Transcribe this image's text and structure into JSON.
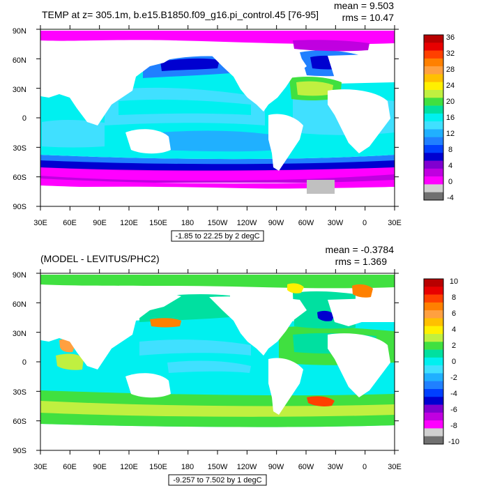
{
  "panels": [
    {
      "title": "TEMP at z= 305.1m, b.e15.B1850.f09_g16.pi_control.45 [76-95]",
      "mean": "mean = 9.503",
      "rms": "rms = 10.47",
      "range": "-1.85 to 22.25 by 2 degC",
      "lat_labels": [
        "90N",
        "60N",
        "30N",
        "0",
        "30S",
        "60S",
        "90S"
      ],
      "lon_labels": [
        "30E",
        "60E",
        "90E",
        "120E",
        "150E",
        "180",
        "150W",
        "120W",
        "90W",
        "60W",
        "30W",
        "0",
        "30E"
      ],
      "colorbar_labels": [
        "36",
        "32",
        "28",
        "24",
        "20",
        "16",
        "12",
        "8",
        "4",
        "0",
        "-4"
      ],
      "colorbar_colors": [
        "#b80000",
        "#e80000",
        "#ff4000",
        "#ff8000",
        "#ffa040",
        "#ffc000",
        "#fff000",
        "#c0f040",
        "#40e040",
        "#00e0a0",
        "#00f0f0",
        "#40e0ff",
        "#20b0ff",
        "#2080ff",
        "#0040ff",
        "#0000d0",
        "#8000d0",
        "#c000e0",
        "#ff00ff",
        "#d0d0d0",
        "#707070"
      ]
    },
    {
      "title": "(MODEL - LEVITUS/PHC2)",
      "mean": "mean = -0.3784",
      "rms": "rms = 1.369",
      "range": "-9.257 to 7.502 by 1 degC",
      "lat_labels": [
        "90N",
        "60N",
        "30N",
        "0",
        "30S",
        "60S",
        "90S"
      ],
      "lon_labels": [
        "30E",
        "60E",
        "90E",
        "120E",
        "150E",
        "180",
        "150W",
        "120W",
        "90W",
        "60W",
        "30W",
        "0",
        "30E"
      ],
      "colorbar_labels": [
        "10",
        "8",
        "6",
        "4",
        "2",
        "0",
        "-2",
        "-4",
        "-6",
        "-8",
        "-10"
      ],
      "colorbar_colors": [
        "#b80000",
        "#e80000",
        "#ff4000",
        "#ff8000",
        "#ffa040",
        "#ffc000",
        "#fff000",
        "#c0f040",
        "#40e040",
        "#00e0a0",
        "#00f0f0",
        "#40e0ff",
        "#20b0ff",
        "#2080ff",
        "#0040ff",
        "#0000d0",
        "#8000d0",
        "#c000e0",
        "#ff00ff",
        "#d0d0d0",
        "#707070"
      ]
    }
  ]
}
